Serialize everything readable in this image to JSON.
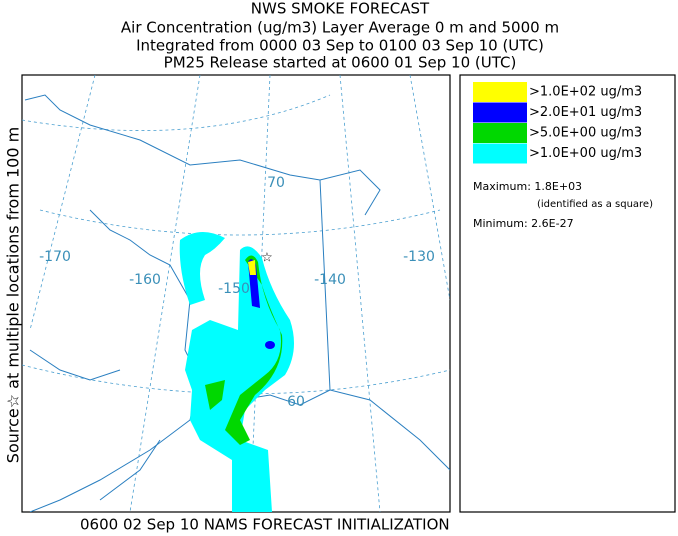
{
  "header": {
    "lines": [
      "NWS SMOKE FORECAST",
      "Air Concentration (ug/m3) Layer Average    0 m and  5000 m",
      "Integrated from 0000 03 Sep to 0100 03 Sep 10 (UTC)",
      "PM25 Release started at 0600 01 Sep 10 (UTC)"
    ]
  },
  "side_label": "Source☆ at multiple locations from  100 m",
  "map": {
    "labels": [
      "-170",
      "-160",
      "-150",
      "-140",
      "-130",
      "70",
      "60"
    ]
  },
  "legend": {
    "entries": [
      {
        "label": ">1.0E+02 ug/m3",
        "color": "#ffff00"
      },
      {
        "label": ">2.0E+01 ug/m3",
        "color": "#0000ff"
      },
      {
        "label": ">5.0E+00 ug/m3",
        "color": "#00d800"
      },
      {
        "label": ">1.0E+00 ug/m3",
        "color": "#00ffff"
      }
    ],
    "maximum": "Maximum: 1.8E+03",
    "max_note": "(identified as a square)",
    "minimum": "Minimum: 2.6E-27"
  },
  "footer": "0600 02 Sep 10 NAMS FORECAST INITIALIZATION"
}
